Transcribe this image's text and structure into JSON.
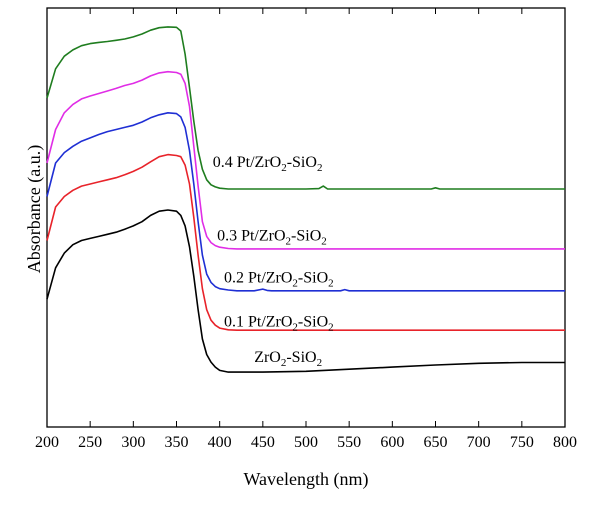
{
  "chart_data": {
    "type": "line",
    "title": "",
    "xlabel": "Wavelength (nm)",
    "ylabel": "Absorbance (a.u.)",
    "xlim": [
      200,
      800
    ],
    "ylim": [
      0,
      100
    ],
    "xticks": [
      200,
      250,
      300,
      350,
      400,
      450,
      500,
      550,
      600,
      650,
      700,
      750,
      800
    ],
    "y_tick_labels_shown": false,
    "grid": false,
    "legend": "inline labels at right of each curve",
    "series": [
      {
        "name": "ZrO2-SiO2",
        "label_parts": [
          [
            "ZrO",
            false
          ],
          [
            "2",
            true
          ],
          [
            "-SiO",
            false
          ],
          [
            "2",
            true
          ]
        ],
        "label_anchor": [
          440,
          15.5
        ],
        "color": "#000000",
        "x": [
          200,
          210,
          220,
          230,
          240,
          250,
          260,
          270,
          280,
          290,
          300,
          310,
          320,
          330,
          340,
          350,
          355,
          360,
          365,
          370,
          375,
          380,
          385,
          390,
          395,
          400,
          410,
          420,
          450,
          500,
          550,
          600,
          650,
          700,
          750,
          800
        ],
        "values": [
          30.5,
          38,
          41.5,
          43.5,
          44.5,
          45,
          45.5,
          46,
          46.5,
          47.2,
          48,
          49,
          50.5,
          51.5,
          51.8,
          51.5,
          50.5,
          48,
          43,
          36,
          28,
          21,
          17.3,
          15.5,
          14.3,
          13.5,
          13.1,
          13.1,
          13.1,
          13.3,
          13.8,
          14.3,
          14.8,
          15.2,
          15.4,
          15.4
        ]
      },
      {
        "name": "0.1 Pt/ZrO2-SiO2",
        "label_parts": [
          [
            "0.1 Pt/ZrO",
            false
          ],
          [
            "2",
            true
          ],
          [
            "-SiO",
            false
          ],
          [
            "2",
            true
          ]
        ],
        "label_anchor": [
          405,
          24
        ],
        "color": "#e8232a",
        "x": [
          200,
          210,
          220,
          230,
          240,
          250,
          260,
          270,
          280,
          290,
          300,
          310,
          320,
          330,
          340,
          350,
          355,
          360,
          365,
          370,
          375,
          380,
          385,
          390,
          395,
          400,
          410,
          420,
          450,
          500,
          550,
          600,
          650,
          700,
          750,
          800
        ],
        "values": [
          44.5,
          52.5,
          55,
          56.5,
          57.5,
          58,
          58.5,
          59,
          59.5,
          60.2,
          61,
          62,
          63.3,
          64.5,
          65,
          64.8,
          64.5,
          62.5,
          58,
          50,
          41,
          33,
          28,
          25.5,
          24.3,
          23.6,
          23.2,
          23.1,
          23.1,
          23.1,
          23.1,
          23.1,
          23.1,
          23.1,
          23.1,
          23.1
        ]
      },
      {
        "name": "0.2 Pt/ZrO2-SiO2",
        "label_parts": [
          [
            "0.2 Pt/ZrO",
            false
          ],
          [
            "2",
            true
          ],
          [
            "-SiO",
            false
          ],
          [
            "2",
            true
          ]
        ],
        "label_anchor": [
          405,
          34.5
        ],
        "color": "#1f2fd4",
        "x": [
          200,
          210,
          220,
          230,
          240,
          250,
          260,
          270,
          280,
          290,
          300,
          310,
          320,
          330,
          340,
          350,
          355,
          360,
          365,
          370,
          375,
          380,
          385,
          390,
          395,
          400,
          410,
          420,
          440,
          450,
          455,
          460,
          500,
          540,
          545,
          550,
          600,
          650,
          700,
          750,
          800
        ],
        "values": [
          55,
          63,
          65.5,
          67,
          68.2,
          69,
          69.8,
          70.5,
          71,
          71.5,
          72,
          72.8,
          73.8,
          74.5,
          75,
          74.8,
          74,
          71.5,
          66,
          58,
          49,
          41,
          36.5,
          34.5,
          33.5,
          33,
          32.7,
          32.5,
          32.5,
          32.9,
          32.6,
          32.5,
          32.5,
          32.5,
          32.8,
          32.5,
          32.5,
          32.5,
          32.5,
          32.5,
          32.5
        ]
      },
      {
        "name": "0.3 Pt/ZrO2-SiO2",
        "label_parts": [
          [
            "0.3 Pt/ZrO",
            false
          ],
          [
            "2",
            true
          ],
          [
            "-SiO",
            false
          ],
          [
            "2",
            true
          ]
        ],
        "label_anchor": [
          397,
          44.5
        ],
        "color": "#e02de6",
        "x": [
          200,
          210,
          220,
          230,
          240,
          250,
          260,
          270,
          280,
          290,
          300,
          310,
          320,
          330,
          340,
          350,
          355,
          360,
          365,
          370,
          375,
          380,
          385,
          390,
          395,
          400,
          410,
          420,
          450,
          500,
          550,
          600,
          650,
          700,
          750,
          800
        ],
        "values": [
          63,
          71,
          75,
          77,
          78.3,
          79,
          79.6,
          80.2,
          80.8,
          81.5,
          82,
          82.8,
          83.8,
          84.5,
          84.8,
          84.6,
          84.2,
          82,
          76.5,
          67,
          57.5,
          49,
          45.5,
          44,
          43.3,
          42.9,
          42.6,
          42.5,
          42.5,
          42.5,
          42.5,
          42.5,
          42.5,
          42.5,
          42.5,
          42.5
        ]
      },
      {
        "name": "0.4 Pt/ZrO2-SiO2",
        "label_parts": [
          [
            "0.4 Pt/ZrO",
            false
          ],
          [
            "2",
            true
          ],
          [
            "-SiO",
            false
          ],
          [
            "2",
            true
          ]
        ],
        "label_anchor": [
          392,
          62
        ],
        "color": "#1f7d1f",
        "x": [
          200,
          210,
          220,
          230,
          240,
          250,
          260,
          270,
          280,
          290,
          300,
          310,
          320,
          330,
          340,
          350,
          355,
          360,
          365,
          370,
          375,
          380,
          385,
          390,
          395,
          400,
          410,
          420,
          450,
          500,
          515,
          520,
          525,
          550,
          600,
          645,
          650,
          655,
          700,
          750,
          800
        ],
        "values": [
          78.5,
          85.5,
          88.5,
          90,
          91,
          91.5,
          91.8,
          92,
          92.3,
          92.6,
          93.1,
          93.8,
          94.7,
          95.3,
          95.5,
          95.4,
          94.5,
          89,
          81,
          73,
          66,
          61.5,
          59,
          57.8,
          57.3,
          57,
          56.8,
          56.8,
          56.8,
          56.8,
          56.9,
          57.5,
          56.8,
          56.8,
          56.8,
          56.8,
          57.1,
          56.8,
          56.8,
          56.8,
          56.8
        ]
      }
    ]
  }
}
